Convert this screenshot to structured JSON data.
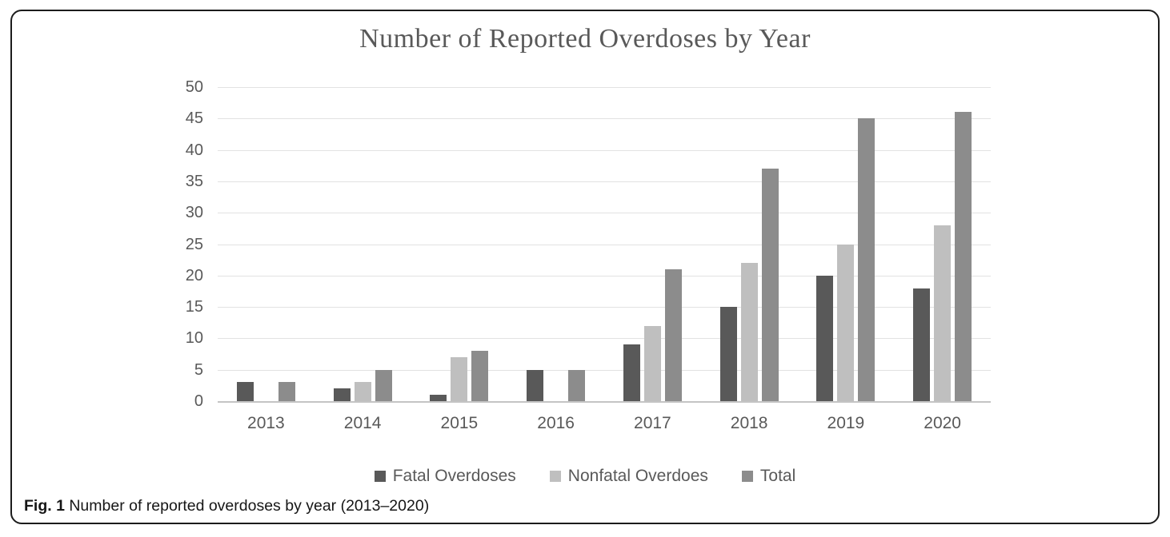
{
  "figure": {
    "caption_label": "Fig. 1",
    "caption_text": " Number of reported overdoses by year (2013–2020)"
  },
  "chart_data": {
    "type": "bar",
    "title": "Number of Reported Overdoses by Year",
    "categories": [
      "2013",
      "2014",
      "2015",
      "2016",
      "2017",
      "2018",
      "2019",
      "2020"
    ],
    "series": [
      {
        "name": "Fatal Overdoses",
        "color": "#595959",
        "values": [
          3,
          2,
          1,
          5,
          9,
          15,
          20,
          18
        ]
      },
      {
        "name": "Nonfatal Overdoes",
        "color": "#bfbfbf",
        "values": [
          0,
          3,
          7,
          0,
          12,
          22,
          25,
          28
        ]
      },
      {
        "name": "Total",
        "color": "#8c8c8c",
        "values": [
          3,
          5,
          8,
          5,
          21,
          37,
          45,
          46
        ]
      }
    ],
    "xlabel": "",
    "ylabel": "",
    "ylim": [
      0,
      50
    ],
    "ytick_step": 5,
    "yticks": [
      0,
      5,
      10,
      15,
      20,
      25,
      30,
      35,
      40,
      45,
      50
    ],
    "grid": true,
    "legend_position": "bottom"
  },
  "style_colors": {
    "gridline": "#e2e2e2",
    "axis_line": "#c4c4c4",
    "axis_text": "#595959",
    "title_text": "#595959",
    "frame_border": "#1c1c1c"
  }
}
